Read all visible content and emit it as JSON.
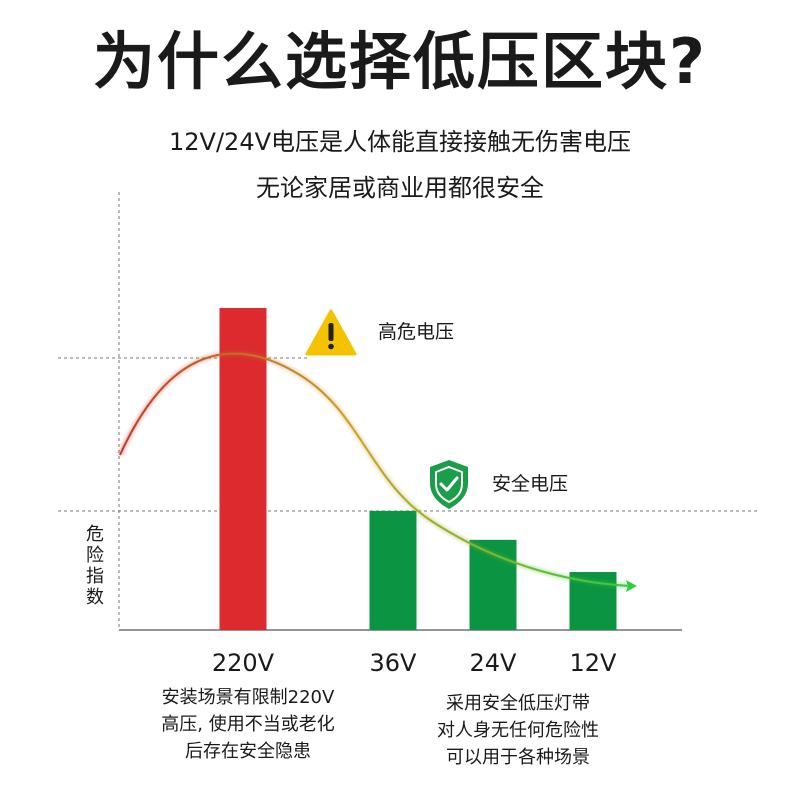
{
  "header": {
    "title": "为什么选择低压区块?",
    "subtitle_1": "12V/24V电压是人体能直接接触无伤害电压",
    "subtitle_2": "无论家居或商业用都很安全"
  },
  "chart_data": {
    "type": "bar",
    "categories": [
      "220V",
      "36V",
      "24V",
      "12V"
    ],
    "values": [
      100,
      37,
      28,
      18
    ],
    "colors": [
      "#dc2a2e",
      "#0b9441",
      "#0b9441",
      "#0b9441"
    ],
    "ylabel": "危险指数",
    "ylim": [
      0,
      100
    ],
    "curve": {
      "from_color": "#c0392b",
      "to_color": "#2ecc40",
      "arrow": true
    },
    "annotations": [
      {
        "icon": "warning-icon",
        "label": "高危电压",
        "color": "#f5c200"
      },
      {
        "icon": "shield-check-icon",
        "label": "安全电压",
        "color": "#1a9e4a"
      }
    ]
  },
  "notes": {
    "left": [
      "安装场景有限制220V",
      "高压, 使用不当或老化",
      "后存在安全隐患"
    ],
    "right": [
      "采用安全低压灯带",
      "对人身无任何危险性",
      "可以用于各种场景"
    ]
  }
}
